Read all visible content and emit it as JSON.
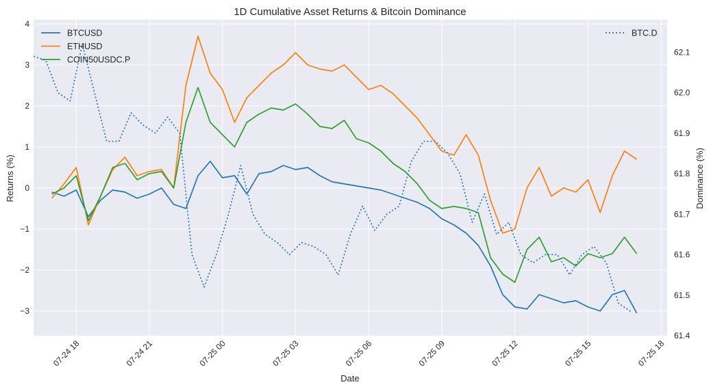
{
  "chart_data": {
    "type": "line",
    "title": "1D Cumulative Asset Returns & Bitcoin Dominance",
    "xlabel": "Date",
    "ylabel": "Returns (%)",
    "y2label": "Dominance (%)",
    "xlim": [
      "07-24 16:15",
      "07-25 18:15"
    ],
    "ylim": [
      -3.6,
      4.1
    ],
    "y2lim": [
      61.4,
      62.18
    ],
    "x_ticks": [
      "07-24 18",
      "07-24 21",
      "07-25 00",
      "07-25 03",
      "07-25 06",
      "07-25 09",
      "07-25 12",
      "07-25 15",
      "07-25 18"
    ],
    "y_ticks": [
      "−3",
      "−2",
      "−1",
      "0",
      "1",
      "2",
      "3",
      "4"
    ],
    "y2_ticks": [
      "61.4",
      "61.5",
      "61.6",
      "61.7",
      "61.8",
      "61.9",
      "62.0",
      "62.1"
    ],
    "grid": true,
    "legend_left": "upper-left",
    "legend_right": "upper-right",
    "series": [
      {
        "name": "BTCUSD",
        "axis": "left",
        "color": "#1f77b4",
        "style": "solid",
        "x": [
          "07-24 17:00",
          "07-24 17:30",
          "07-24 18:00",
          "07-24 18:30",
          "07-24 19:00",
          "07-24 19:30",
          "07-24 20:00",
          "07-24 20:30",
          "07-24 21:00",
          "07-24 21:30",
          "07-24 22:00",
          "07-24 22:30",
          "07-24 23:00",
          "07-24 23:30",
          "07-25 00:00",
          "07-25 00:30",
          "07-25 01:00",
          "07-25 01:30",
          "07-25 02:00",
          "07-25 02:30",
          "07-25 03:00",
          "07-25 03:30",
          "07-25 04:00",
          "07-25 04:30",
          "07-25 05:00",
          "07-25 05:30",
          "07-25 06:00",
          "07-25 06:30",
          "07-25 07:00",
          "07-25 07:30",
          "07-25 08:00",
          "07-25 08:30",
          "07-25 09:00",
          "07-25 09:30",
          "07-25 10:00",
          "07-25 10:30",
          "07-25 11:00",
          "07-25 11:30",
          "07-25 12:00",
          "07-25 12:30",
          "07-25 13:00",
          "07-25 13:30",
          "07-25 14:00",
          "07-25 14:30",
          "07-25 15:00",
          "07-25 15:30",
          "07-25 16:00",
          "07-25 16:30",
          "07-25 17:00"
        ],
        "values": [
          -0.1,
          -0.2,
          -0.05,
          -0.7,
          -0.3,
          -0.05,
          -0.1,
          -0.25,
          -0.15,
          0.0,
          -0.4,
          -0.5,
          0.3,
          0.65,
          0.25,
          0.3,
          -0.15,
          0.35,
          0.4,
          0.55,
          0.45,
          0.5,
          0.3,
          0.15,
          0.1,
          0.05,
          0.0,
          -0.05,
          -0.15,
          -0.25,
          -0.35,
          -0.5,
          -0.75,
          -0.9,
          -1.1,
          -1.4,
          -1.9,
          -2.6,
          -2.9,
          -2.95,
          -2.6,
          -2.7,
          -2.8,
          -2.75,
          -2.9,
          -3.0,
          -2.6,
          -2.5,
          -3.05
        ]
      },
      {
        "name": "ETHUSD",
        "axis": "left",
        "color": "#ff7f0e",
        "style": "solid",
        "x": [
          "07-24 17:00",
          "07-24 17:30",
          "07-24 18:00",
          "07-24 18:30",
          "07-24 19:00",
          "07-24 19:30",
          "07-24 20:00",
          "07-24 20:30",
          "07-24 21:00",
          "07-24 21:30",
          "07-24 22:00",
          "07-24 22:30",
          "07-24 23:00",
          "07-24 23:30",
          "07-25 00:00",
          "07-25 00:30",
          "07-25 01:00",
          "07-25 01:30",
          "07-25 02:00",
          "07-25 02:30",
          "07-25 03:00",
          "07-25 03:30",
          "07-25 04:00",
          "07-25 04:30",
          "07-25 05:00",
          "07-25 05:30",
          "07-25 06:00",
          "07-25 06:30",
          "07-25 07:00",
          "07-25 07:30",
          "07-25 08:00",
          "07-25 08:30",
          "07-25 09:00",
          "07-25 09:30",
          "07-25 10:00",
          "07-25 10:30",
          "07-25 11:00",
          "07-25 11:30",
          "07-25 12:00",
          "07-25 12:30",
          "07-25 13:00",
          "07-25 13:30",
          "07-25 14:00",
          "07-25 14:30",
          "07-25 15:00",
          "07-25 15:30",
          "07-25 16:00",
          "07-25 16:30",
          "07-25 17:00"
        ],
        "values": [
          -0.25,
          0.1,
          0.5,
          -0.9,
          -0.2,
          0.45,
          0.75,
          0.3,
          0.4,
          0.45,
          0.0,
          2.5,
          3.7,
          2.8,
          2.4,
          1.6,
          2.2,
          2.5,
          2.8,
          3.0,
          3.3,
          3.0,
          2.9,
          2.85,
          3.0,
          2.7,
          2.4,
          2.5,
          2.3,
          2.0,
          1.7,
          1.3,
          0.9,
          0.8,
          1.3,
          0.8,
          -0.3,
          -1.1,
          -1.0,
          0.0,
          0.5,
          -0.2,
          0.0,
          -0.1,
          0.2,
          -0.6,
          0.3,
          0.9,
          0.7
        ]
      },
      {
        "name": "COIN50USDC.P",
        "axis": "left",
        "color": "#2ca02c",
        "style": "solid",
        "x": [
          "07-24 17:00",
          "07-24 17:30",
          "07-24 18:00",
          "07-24 18:30",
          "07-24 19:00",
          "07-24 19:30",
          "07-24 20:00",
          "07-24 20:30",
          "07-24 21:00",
          "07-24 21:30",
          "07-24 22:00",
          "07-24 22:30",
          "07-24 23:00",
          "07-24 23:30",
          "07-25 00:00",
          "07-25 00:30",
          "07-25 01:00",
          "07-25 01:30",
          "07-25 02:00",
          "07-25 02:30",
          "07-25 03:00",
          "07-25 03:30",
          "07-25 04:00",
          "07-25 04:30",
          "07-25 05:00",
          "07-25 05:30",
          "07-25 06:00",
          "07-25 06:30",
          "07-25 07:00",
          "07-25 07:30",
          "07-25 08:00",
          "07-25 08:30",
          "07-25 09:00",
          "07-25 09:30",
          "07-25 10:00",
          "07-25 10:30",
          "07-25 11:00",
          "07-25 11:30",
          "07-25 12:00",
          "07-25 12:30",
          "07-25 13:00",
          "07-25 13:30",
          "07-25 14:00",
          "07-25 14:30",
          "07-25 15:00",
          "07-25 15:30",
          "07-25 16:00",
          "07-25 16:30",
          "07-25 17:00"
        ],
        "values": [
          -0.15,
          0.0,
          0.3,
          -0.8,
          -0.2,
          0.5,
          0.6,
          0.2,
          0.35,
          0.4,
          0.0,
          1.6,
          2.45,
          1.6,
          1.3,
          1.0,
          1.6,
          1.8,
          1.95,
          1.9,
          2.05,
          1.8,
          1.5,
          1.45,
          1.65,
          1.2,
          1.1,
          0.9,
          0.6,
          0.4,
          0.1,
          -0.3,
          -0.5,
          -0.45,
          -0.5,
          -0.6,
          -1.7,
          -2.1,
          -2.3,
          -1.5,
          -1.2,
          -1.8,
          -1.7,
          -1.9,
          -1.6,
          -1.7,
          -1.6,
          -1.2,
          -1.6
        ]
      },
      {
        "name": "BTC.D",
        "axis": "right",
        "color": "#1f77b4",
        "style": "dotted",
        "x": [
          "07-24 16:15",
          "07-24 16:45",
          "07-24 17:15",
          "07-24 17:45",
          "07-24 18:15",
          "07-24 18:45",
          "07-24 19:15",
          "07-24 19:45",
          "07-24 20:15",
          "07-24 20:45",
          "07-24 21:15",
          "07-24 21:45",
          "07-24 22:15",
          "07-24 22:45",
          "07-24 23:15",
          "07-24 23:45",
          "07-25 00:15",
          "07-25 00:45",
          "07-25 01:15",
          "07-25 01:45",
          "07-25 02:15",
          "07-25 02:45",
          "07-25 03:15",
          "07-25 03:45",
          "07-25 04:15",
          "07-25 04:45",
          "07-25 05:15",
          "07-25 05:45",
          "07-25 06:15",
          "07-25 06:45",
          "07-25 07:15",
          "07-25 07:45",
          "07-25 08:15",
          "07-25 08:45",
          "07-25 09:15",
          "07-25 09:45",
          "07-25 10:15",
          "07-25 10:45",
          "07-25 11:15",
          "07-25 11:45",
          "07-25 12:15",
          "07-25 12:45",
          "07-25 13:15",
          "07-25 13:45",
          "07-25 14:15",
          "07-25 14:45",
          "07-25 15:15",
          "07-25 15:45",
          "07-25 16:15",
          "07-25 16:45"
        ],
        "values": [
          62.09,
          62.08,
          62.0,
          61.98,
          62.12,
          62.0,
          61.88,
          61.88,
          61.95,
          61.92,
          61.9,
          61.94,
          61.9,
          61.6,
          61.52,
          61.6,
          61.7,
          61.82,
          61.7,
          61.65,
          61.63,
          61.6,
          61.63,
          61.62,
          61.6,
          61.55,
          61.65,
          61.72,
          61.66,
          61.7,
          61.72,
          61.83,
          61.88,
          61.88,
          61.85,
          61.8,
          61.68,
          61.75,
          61.65,
          61.68,
          61.6,
          61.58,
          61.6,
          61.6,
          61.55,
          61.6,
          61.62,
          61.58,
          61.48,
          61.46
        ]
      }
    ]
  }
}
